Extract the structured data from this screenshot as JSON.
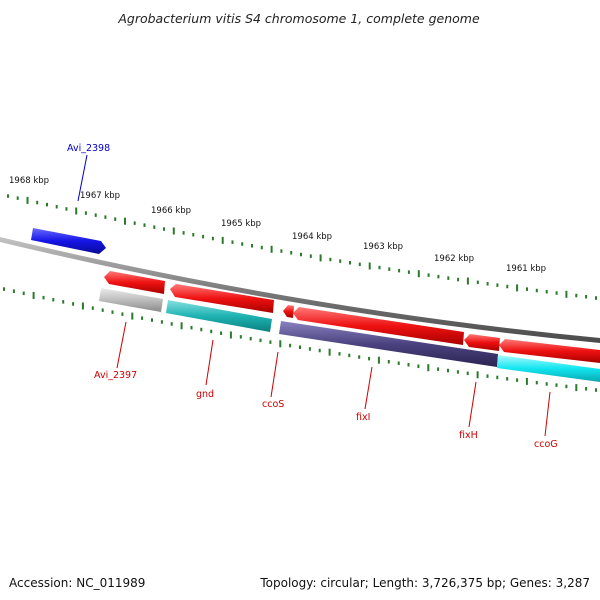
{
  "title": "Agrobacterium vitis S4 chromosome 1, complete genome",
  "accession": "Accession: NC_011989",
  "topology": "Topology: circular; Length: 3,726,375 bp; Genes: 3,287",
  "scale_labels": [
    "1968 kbp",
    "1967 kbp",
    "1966 kbp",
    "1965 kbp",
    "1964 kbp",
    "1963 kbp",
    "1962 kbp",
    "1961 kbp"
  ],
  "gene_labels": {
    "avi_2398": "Avi_2398",
    "avi_2397": "Avi_2397",
    "gnd": "gnd",
    "ccos": "ccoS",
    "fixi": "fixI",
    "fixh": "fixH",
    "ccog": "ccoG"
  },
  "colors": {
    "backbone": "#7a7a7a",
    "forward_cds": "#1010e0",
    "reverse_cds": "#ee1111",
    "label_forward": "#0000cc",
    "label_reverse": "#cc0000",
    "tick": "#2a7a2a",
    "cog_grey": "#bdbdbd",
    "cog_teal": "#1fb3b3",
    "cog_purple": "#4b4280",
    "cog_cyan": "#12e6f0"
  }
}
